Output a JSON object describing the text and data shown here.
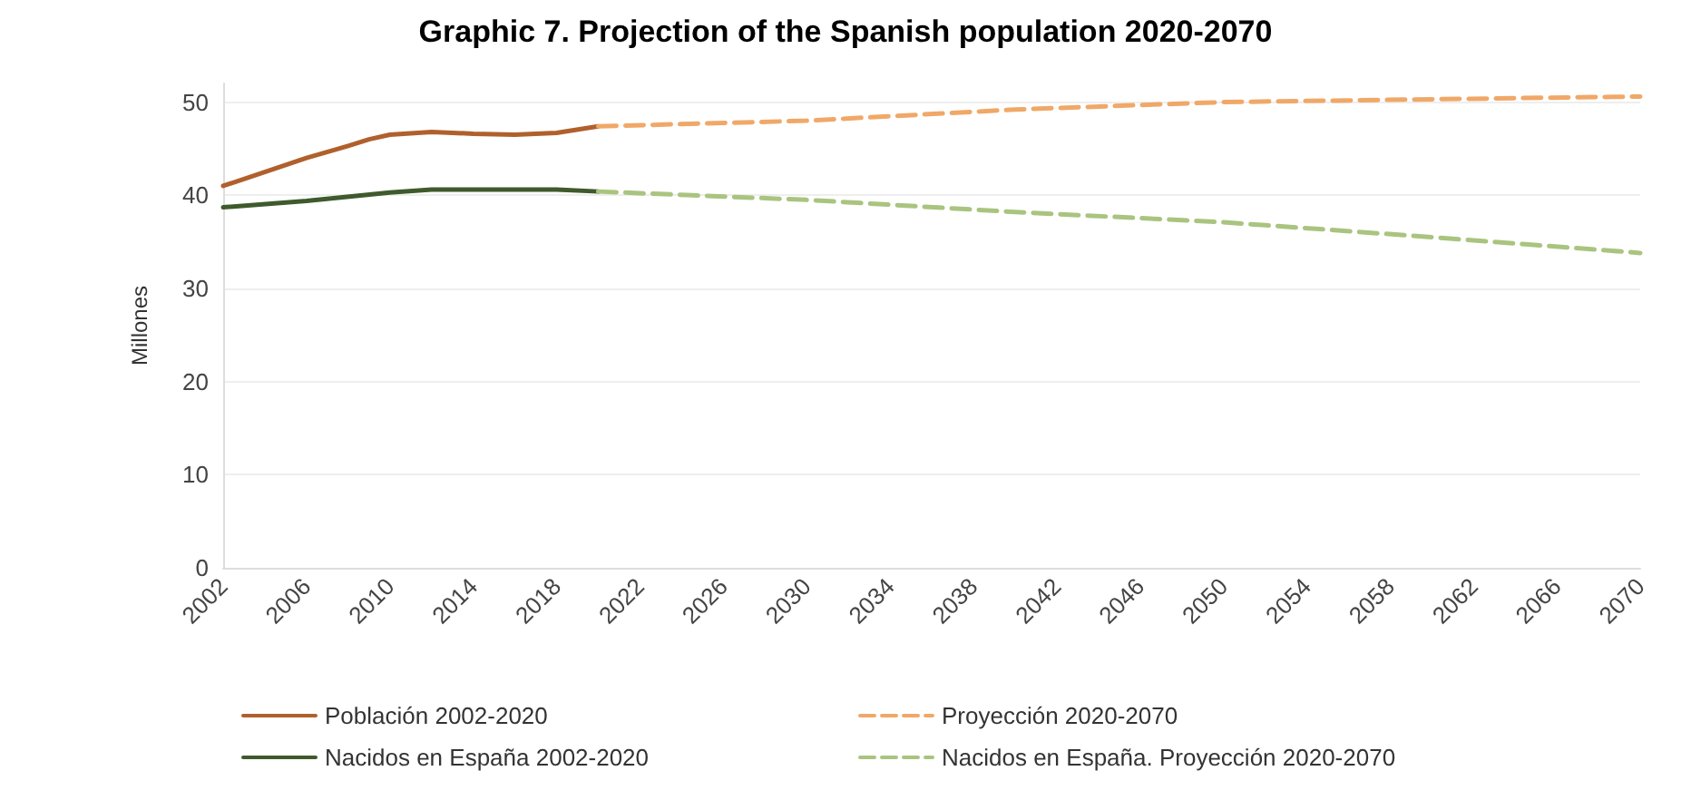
{
  "chart_data": {
    "type": "line",
    "title": "Graphic 7. Projection of the Spanish population 2020-2070",
    "ylabel": "Millones",
    "xlim": [
      2002,
      2070
    ],
    "xticks": [
      2002,
      2006,
      2010,
      2014,
      2018,
      2022,
      2026,
      2030,
      2034,
      2038,
      2042,
      2046,
      2050,
      2054,
      2058,
      2062,
      2066,
      2070
    ],
    "ylim": [
      0,
      52
    ],
    "yticks": [
      0,
      10,
      20,
      30,
      40,
      50
    ],
    "grid": "y",
    "legend": "bottom",
    "marker": "none",
    "series": [
      {
        "name": "Población 2002-2020",
        "color": "#b0602c",
        "line_style": "solid",
        "x": [
          2002,
          2004,
          2006,
          2008,
          2009,
          2010,
          2012,
          2014,
          2016,
          2018,
          2020
        ],
        "values": [
          41.0,
          42.5,
          44.0,
          45.3,
          46.0,
          46.5,
          46.8,
          46.6,
          46.5,
          46.7,
          47.4
        ]
      },
      {
        "name": "Proyección 2020-2070",
        "color": "#f0a868",
        "line_style": "dashed",
        "x": [
          2020,
          2030,
          2040,
          2050,
          2060,
          2070
        ],
        "values": [
          47.4,
          48.0,
          49.2,
          50.0,
          50.3,
          50.6
        ]
      },
      {
        "name": "Nacidos en España 2002-2020",
        "color": "#3f5a2c",
        "line_style": "solid",
        "x": [
          2002,
          2006,
          2010,
          2012,
          2016,
          2018,
          2020
        ],
        "values": [
          38.7,
          39.4,
          40.3,
          40.6,
          40.6,
          40.6,
          40.4
        ]
      },
      {
        "name": "Nacidos en España. Proyección 2020-2070",
        "color": "#a9c47f",
        "line_style": "dashed",
        "x": [
          2020,
          2030,
          2040,
          2050,
          2060,
          2070
        ],
        "values": [
          40.4,
          39.5,
          38.2,
          37.1,
          35.5,
          33.8
        ]
      }
    ]
  }
}
